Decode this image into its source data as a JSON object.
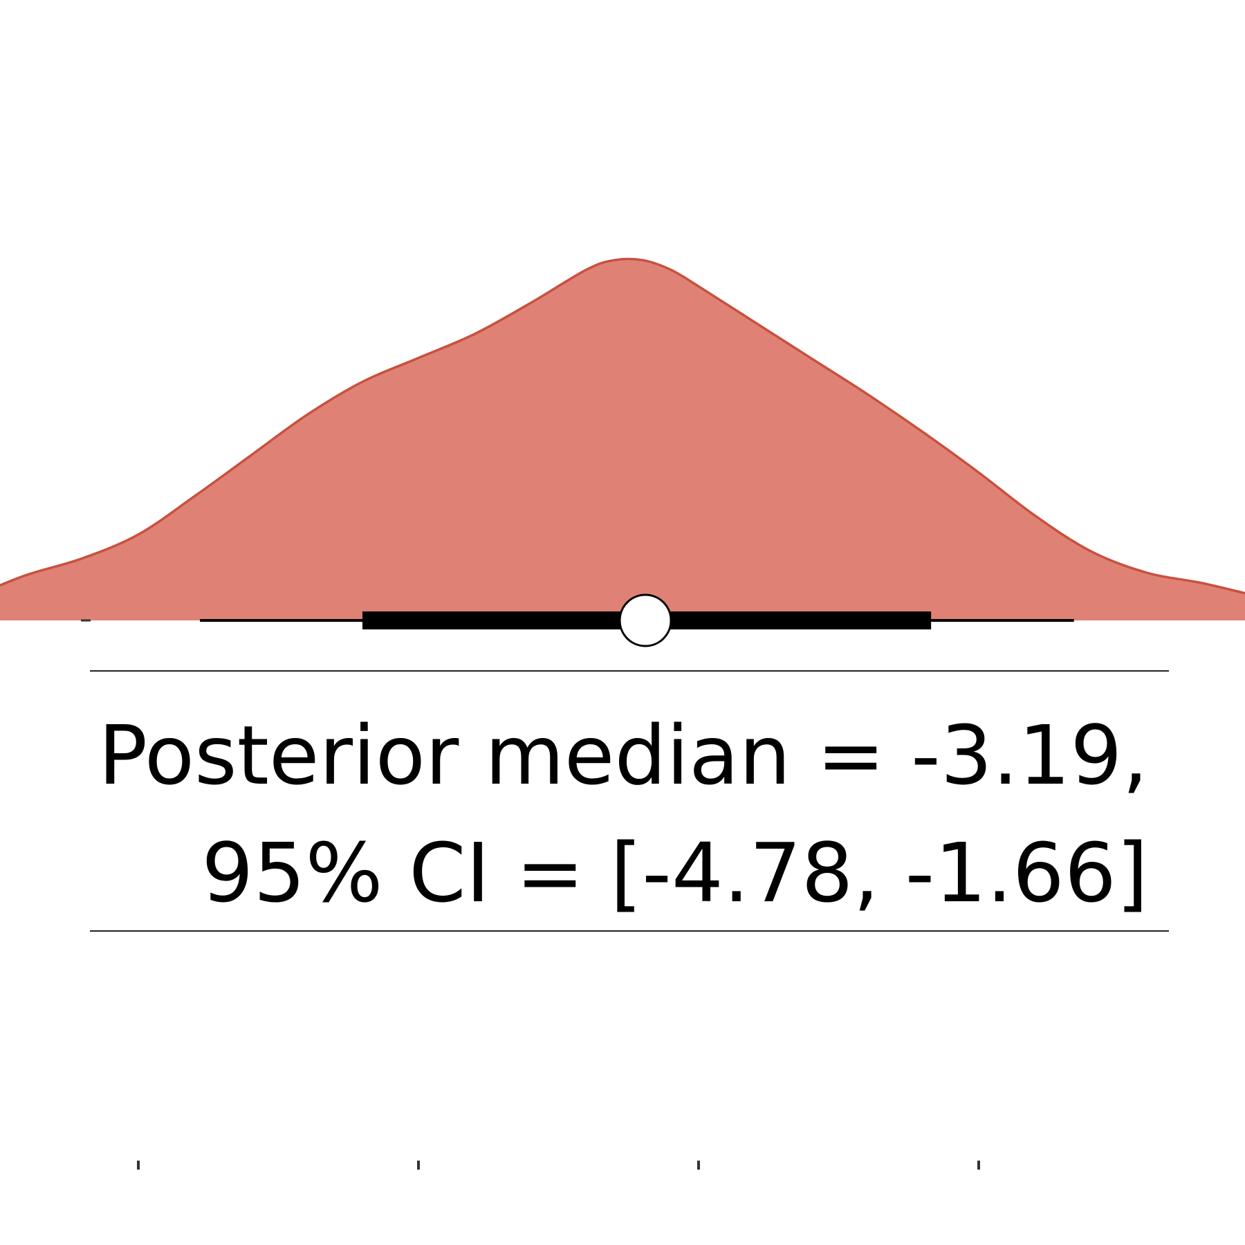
{
  "chart_data": {
    "type": "density-interval",
    "title": "",
    "xlabel": "",
    "ylabel": "",
    "xlim": [
      -6.0,
      0.2
    ],
    "x_ticks": [
      -5,
      -4,
      -3,
      -2,
      -1,
      0
    ],
    "tick_labels_visible": false,
    "reference_line": {
      "x": 0.0,
      "style": "dashed",
      "color": "#c0522d"
    },
    "density": {
      "fill_color": "#df8275",
      "line_color": "#c9503e",
      "x": [
        -6.22,
        -6.0,
        -5.8,
        -5.6,
        -5.4,
        -5.2,
        -5.0,
        -4.8,
        -4.6,
        -4.4,
        -4.2,
        -4.0,
        -3.8,
        -3.6,
        -3.4,
        -3.3,
        -3.2,
        -3.1,
        -3.0,
        -2.8,
        -2.6,
        -2.4,
        -2.2,
        -2.0,
        -1.8,
        -1.6,
        -1.4,
        -1.2,
        -1.0,
        -0.8,
        -0.6,
        -0.4,
        -0.2,
        -0.14
      ],
      "density": [
        0.005,
        0.016,
        0.023,
        0.05,
        0.095,
        0.13,
        0.18,
        0.26,
        0.345,
        0.43,
        0.5,
        0.55,
        0.6,
        0.665,
        0.735,
        0.755,
        0.755,
        0.735,
        0.7,
        0.625,
        0.55,
        0.475,
        0.395,
        0.31,
        0.22,
        0.145,
        0.1,
        0.078,
        0.05,
        0.023,
        0.011,
        0.005,
        0.005,
        0.004
      ]
    },
    "interval": {
      "median": -3.19,
      "inner": [
        -4.2,
        -2.17
      ],
      "outer": [
        -4.78,
        -1.66
      ]
    },
    "annotation": {
      "line1": "Posterior median = -3.19,",
      "line2": "95% CI = [-4.78, -1.66]"
    }
  }
}
